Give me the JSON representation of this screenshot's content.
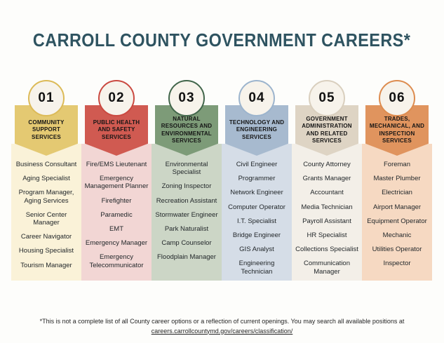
{
  "title": "CARROLL COUNTY GOVERNMENT CAREERS*",
  "title_color": "#2e5360",
  "circle_fill": "#f7f3eb",
  "columns": [
    {
      "number": "01",
      "category": "COMMUNITY SUPPORT SERVICES",
      "colors": {
        "header": "#e4c972",
        "list": "#faf2d8",
        "ring": "#dcba57"
      },
      "jobs": [
        "Business Consultant",
        "Aging Specialist",
        "Program Manager, Aging Services",
        "Senior Center Manager",
        "Career Navigator",
        "Housing Specialist",
        "Tourism Manager"
      ]
    },
    {
      "number": "02",
      "category": "PUBLIC HEALTH AND SAFETY SERVICES",
      "colors": {
        "header": "#d05a51",
        "list": "#f2d6d4",
        "ring": "#ca4940"
      },
      "jobs": [
        "Fire/EMS Lieutenant",
        "Emergency Management Planner",
        "Firefighter",
        "Paramedic",
        "EMT",
        "Emergency Manager",
        "Emergency Telecommunicator"
      ]
    },
    {
      "number": "03",
      "category": "NATURAL RESOURCES AND ENVIRONMENTAL SERVICES",
      "colors": {
        "header": "#7d9b78",
        "list": "#ccd6c6",
        "ring": "#41654a"
      },
      "jobs": [
        "Environmental Specialist",
        "Zoning Inspector",
        "Recreation Assistant",
        "Stormwater Engineer",
        "Park Naturalist",
        "Camp Counselor",
        "Floodplain Manager"
      ]
    },
    {
      "number": "04",
      "category": "TECHNOLOGY AND ENGINEERING SERVICES",
      "colors": {
        "header": "#a7bacf",
        "list": "#d5dde7",
        "ring": "#9cb4cd"
      },
      "jobs": [
        "Civil Engineer",
        "Programmer",
        "Network Engineer",
        "Computer Operator",
        "I.T. Specialist",
        "Bridge Engineer",
        "GIS Analyst",
        "Engineering Technician"
      ]
    },
    {
      "number": "05",
      "category": "GOVERNMENT ADMINISTRATION AND RELATED SERVICES",
      "colors": {
        "header": "#ded4c4",
        "list": "#f3efe8",
        "ring": "#d9cfbe"
      },
      "jobs": [
        "County Attorney",
        "Grants Manager",
        "Accountant",
        "Media Technician",
        "Payroll Assistant",
        "HR Specialist",
        "Collections Specialist",
        "Communication Manager"
      ]
    },
    {
      "number": "06",
      "category": "TRADES, MECHANICAL, AND INSPECTION SERVICES",
      "colors": {
        "header": "#e0945e",
        "list": "#f6d9c2",
        "ring": "#dd8c4f"
      },
      "jobs": [
        "Foreman",
        "Master Plumber",
        "Electrician",
        "Airport Manager",
        "Equipment Operator",
        "Mechanic",
        "Utilities Operator",
        "Inspector"
      ]
    }
  ],
  "footer": {
    "note": "*This is not a complete list of all County career options or a reflection of current openings. You may search all available positions at",
    "link": "careers.carrollcountymd.gov/careers/classification/"
  }
}
